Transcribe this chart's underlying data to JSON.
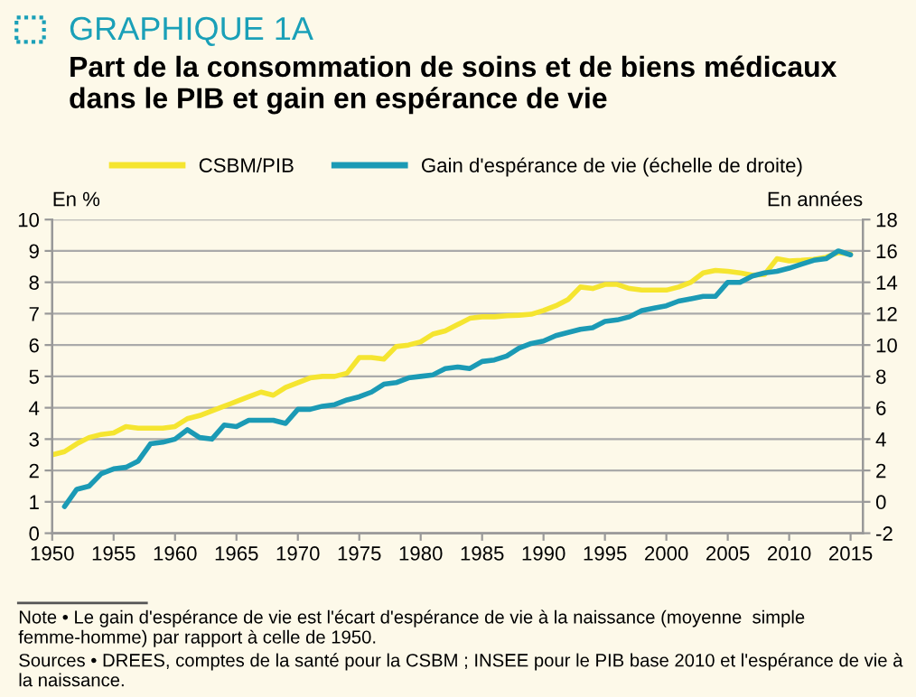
{
  "chart_data": {
    "type": "line",
    "title": "GRAPHIQUE 1A",
    "subtitle": "Part de la consommation de soins et de biens médicaux\ndans le PIB et gain en espérance de vie",
    "ylabel": "En %",
    "y2label": "En années",
    "x": [
      1950,
      1951,
      1952,
      1953,
      1954,
      1955,
      1956,
      1957,
      1958,
      1959,
      1960,
      1961,
      1962,
      1963,
      1964,
      1965,
      1966,
      1967,
      1968,
      1969,
      1970,
      1971,
      1972,
      1973,
      1974,
      1975,
      1976,
      1977,
      1978,
      1979,
      1980,
      1981,
      1982,
      1983,
      1984,
      1985,
      1986,
      1987,
      1988,
      1989,
      1990,
      1991,
      1992,
      1993,
      1994,
      1995,
      1996,
      1997,
      1998,
      1999,
      2000,
      2001,
      2002,
      2003,
      2004,
      2005,
      2006,
      2007,
      2008,
      2009,
      2010,
      2011,
      2012,
      2013,
      2014,
      2015
    ],
    "series": [
      {
        "name": "CSBM/PIB",
        "color": "#f5e530",
        "values": [
          2.5,
          2.6,
          2.85,
          3.05,
          3.15,
          3.2,
          3.4,
          3.35,
          3.35,
          3.35,
          3.4,
          3.65,
          3.75,
          3.9,
          4.05,
          4.2,
          4.35,
          4.5,
          4.4,
          4.65,
          4.8,
          4.95,
          5.0,
          5.0,
          5.1,
          5.6,
          5.6,
          5.55,
          5.95,
          6.0,
          6.1,
          6.35,
          6.45,
          6.65,
          6.85,
          6.9,
          6.9,
          6.93,
          6.95,
          6.98,
          7.1,
          7.25,
          7.45,
          7.85,
          7.8,
          7.93,
          7.93,
          7.8,
          7.75,
          7.75,
          7.75,
          7.85,
          8.0,
          8.3,
          8.38,
          8.35,
          8.3,
          8.23,
          8.25,
          8.75,
          8.68,
          8.7,
          8.73,
          8.8,
          8.95,
          8.9
        ]
      },
      {
        "name": "Gain d'espérance de vie (échelle de droite)",
        "color": "#1b9ab5",
        "axis": "y2",
        "values": [
          null,
          -0.3,
          0.8,
          1.0,
          1.8,
          2.1,
          2.2,
          2.6,
          3.7,
          3.8,
          4.0,
          4.6,
          4.1,
          4.0,
          4.9,
          4.8,
          5.2,
          5.2,
          5.2,
          5.0,
          5.9,
          5.9,
          6.1,
          6.2,
          6.5,
          6.7,
          7.0,
          7.5,
          7.6,
          7.9,
          8.0,
          8.1,
          8.5,
          8.6,
          8.5,
          8.95,
          9.05,
          9.3,
          9.8,
          10.1,
          10.25,
          10.6,
          10.8,
          11.0,
          11.1,
          11.5,
          11.6,
          11.8,
          12.2,
          12.35,
          12.5,
          12.8,
          12.95,
          13.1,
          13.1,
          14.0,
          14.0,
          14.4,
          14.6,
          14.7,
          14.9,
          15.15,
          15.4,
          15.5,
          16.0,
          15.75
        ]
      }
    ],
    "xlim": [
      1950,
      2016
    ],
    "xticks": [
      1950,
      1955,
      1960,
      1965,
      1970,
      1975,
      1980,
      1985,
      1990,
      1995,
      2000,
      2005,
      2010,
      2015
    ],
    "ylim": [
      0,
      10
    ],
    "yticks": [
      0,
      1,
      2,
      3,
      4,
      5,
      6,
      7,
      8,
      9,
      10
    ],
    "y2lim": [
      -2,
      18
    ],
    "y2ticks": [
      -2,
      0,
      2,
      4,
      6,
      8,
      10,
      12,
      14,
      16,
      18
    ],
    "grid": "y",
    "legend": "top",
    "line_style": "solid",
    "annotations": [
      "Note • Le gain d'espérance de vie est l'écart d'espérance de vie à la naissance (moyenne  simple femme-homme) par rapport à celle de 1950.",
      "Sources • DREES, comptes de la santé pour la CSBM ; INSEE pour le PIB base 2010 et l'espérance de vie à la naissance."
    ]
  }
}
